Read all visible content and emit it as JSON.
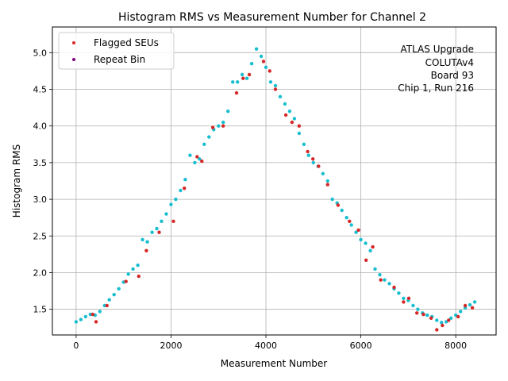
{
  "chart_data": {
    "type": "scatter",
    "title": "Histogram RMS vs Measurement Number for Channel 2",
    "xlabel": "Measurement Number",
    "ylabel": "Histogram RMS",
    "xlim": [
      -500,
      8850
    ],
    "ylim": [
      1.15,
      5.35
    ],
    "x_ticks": [
      0,
      2000,
      4000,
      6000,
      8000
    ],
    "x_tick_labels": [
      "0",
      "2000",
      "4000",
      "6000",
      "8000"
    ],
    "y_ticks": [
      1.5,
      2.0,
      2.5,
      3.0,
      3.5,
      4.0,
      4.5,
      5.0
    ],
    "y_tick_labels": [
      "1.5",
      "2.0",
      "2.5",
      "3.0",
      "3.5",
      "4.0",
      "4.5",
      "5.0"
    ],
    "grid": true,
    "legend_position": "top-left",
    "annotation": [
      "ATLAS Upgrade",
      "COLUTAv4",
      "Board 93",
      "Chip 1, Run 216"
    ],
    "series": [
      {
        "name": "",
        "color": "#17becf",
        "points": [
          [
            0,
            1.33
          ],
          [
            100,
            1.36
          ],
          [
            200,
            1.4
          ],
          [
            300,
            1.43
          ],
          [
            400,
            1.42
          ],
          [
            500,
            1.47
          ],
          [
            600,
            1.55
          ],
          [
            700,
            1.63
          ],
          [
            800,
            1.7
          ],
          [
            900,
            1.78
          ],
          [
            1000,
            1.87
          ],
          [
            1100,
            1.98
          ],
          [
            1200,
            2.05
          ],
          [
            1300,
            2.1
          ],
          [
            1400,
            2.45
          ],
          [
            1500,
            2.42
          ],
          [
            1600,
            2.55
          ],
          [
            1700,
            2.6
          ],
          [
            1800,
            2.7
          ],
          [
            1900,
            2.8
          ],
          [
            2000,
            2.93
          ],
          [
            2100,
            3.0
          ],
          [
            2200,
            3.12
          ],
          [
            2300,
            3.27
          ],
          [
            2400,
            3.6
          ],
          [
            2500,
            3.5
          ],
          [
            2600,
            3.55
          ],
          [
            2700,
            3.75
          ],
          [
            2800,
            3.85
          ],
          [
            2900,
            3.95
          ],
          [
            3000,
            4.0
          ],
          [
            3100,
            4.05
          ],
          [
            3200,
            4.2
          ],
          [
            3300,
            4.6
          ],
          [
            3400,
            4.6
          ],
          [
            3500,
            4.7
          ],
          [
            3600,
            4.65
          ],
          [
            3700,
            4.85
          ],
          [
            3800,
            5.05
          ],
          [
            3900,
            4.95
          ],
          [
            4000,
            4.8
          ],
          [
            4100,
            4.6
          ],
          [
            4200,
            4.55
          ],
          [
            4300,
            4.4
          ],
          [
            4400,
            4.3
          ],
          [
            4500,
            4.2
          ],
          [
            4600,
            4.1
          ],
          [
            4700,
            3.9
          ],
          [
            4800,
            3.75
          ],
          [
            4900,
            3.6
          ],
          [
            5000,
            3.5
          ],
          [
            5100,
            3.45
          ],
          [
            5200,
            3.35
          ],
          [
            5300,
            3.25
          ],
          [
            5400,
            3.0
          ],
          [
            5500,
            2.95
          ],
          [
            5600,
            2.85
          ],
          [
            5700,
            2.75
          ],
          [
            5800,
            2.65
          ],
          [
            5900,
            2.55
          ],
          [
            6000,
            2.45
          ],
          [
            6100,
            2.4
          ],
          [
            6200,
            2.3
          ],
          [
            6300,
            2.05
          ],
          [
            6400,
            1.97
          ],
          [
            6500,
            1.9
          ],
          [
            6600,
            1.85
          ],
          [
            6700,
            1.78
          ],
          [
            6800,
            1.72
          ],
          [
            6900,
            1.65
          ],
          [
            7000,
            1.62
          ],
          [
            7100,
            1.55
          ],
          [
            7200,
            1.5
          ],
          [
            7300,
            1.45
          ],
          [
            7400,
            1.42
          ],
          [
            7500,
            1.4
          ],
          [
            7600,
            1.35
          ],
          [
            7700,
            1.32
          ],
          [
            7800,
            1.33
          ],
          [
            7900,
            1.38
          ],
          [
            8000,
            1.42
          ],
          [
            8100,
            1.47
          ],
          [
            8200,
            1.52
          ],
          [
            8300,
            1.56
          ],
          [
            8400,
            1.6
          ]
        ]
      },
      {
        "name": "Flagged SEUs",
        "color": "#d62728",
        "points": [
          [
            350,
            1.43
          ],
          [
            420,
            1.33
          ],
          [
            650,
            1.55
          ],
          [
            1050,
            1.88
          ],
          [
            1320,
            1.95
          ],
          [
            1480,
            2.3
          ],
          [
            1750,
            2.55
          ],
          [
            2050,
            2.7
          ],
          [
            2280,
            3.15
          ],
          [
            2550,
            3.58
          ],
          [
            2650,
            3.52
          ],
          [
            2880,
            3.98
          ],
          [
            3100,
            4.0
          ],
          [
            3380,
            4.45
          ],
          [
            3520,
            4.65
          ],
          [
            3650,
            4.7
          ],
          [
            3950,
            4.88
          ],
          [
            4080,
            4.75
          ],
          [
            4200,
            4.5
          ],
          [
            4420,
            4.15
          ],
          [
            4550,
            4.05
          ],
          [
            4700,
            4.0
          ],
          [
            4880,
            3.65
          ],
          [
            4990,
            3.55
          ],
          [
            5110,
            3.45
          ],
          [
            5300,
            3.2
          ],
          [
            5520,
            2.92
          ],
          [
            5760,
            2.7
          ],
          [
            5950,
            2.58
          ],
          [
            6110,
            2.17
          ],
          [
            6250,
            2.35
          ],
          [
            6420,
            1.9
          ],
          [
            6700,
            1.8
          ],
          [
            6900,
            1.6
          ],
          [
            7010,
            1.65
          ],
          [
            7180,
            1.45
          ],
          [
            7320,
            1.43
          ],
          [
            7480,
            1.38
          ],
          [
            7600,
            1.22
          ],
          [
            7720,
            1.28
          ],
          [
            7850,
            1.35
          ],
          [
            8050,
            1.4
          ],
          [
            8200,
            1.55
          ],
          [
            8350,
            1.52
          ]
        ]
      },
      {
        "name": "Repeat Bin",
        "color": "#800080",
        "points": []
      }
    ]
  }
}
